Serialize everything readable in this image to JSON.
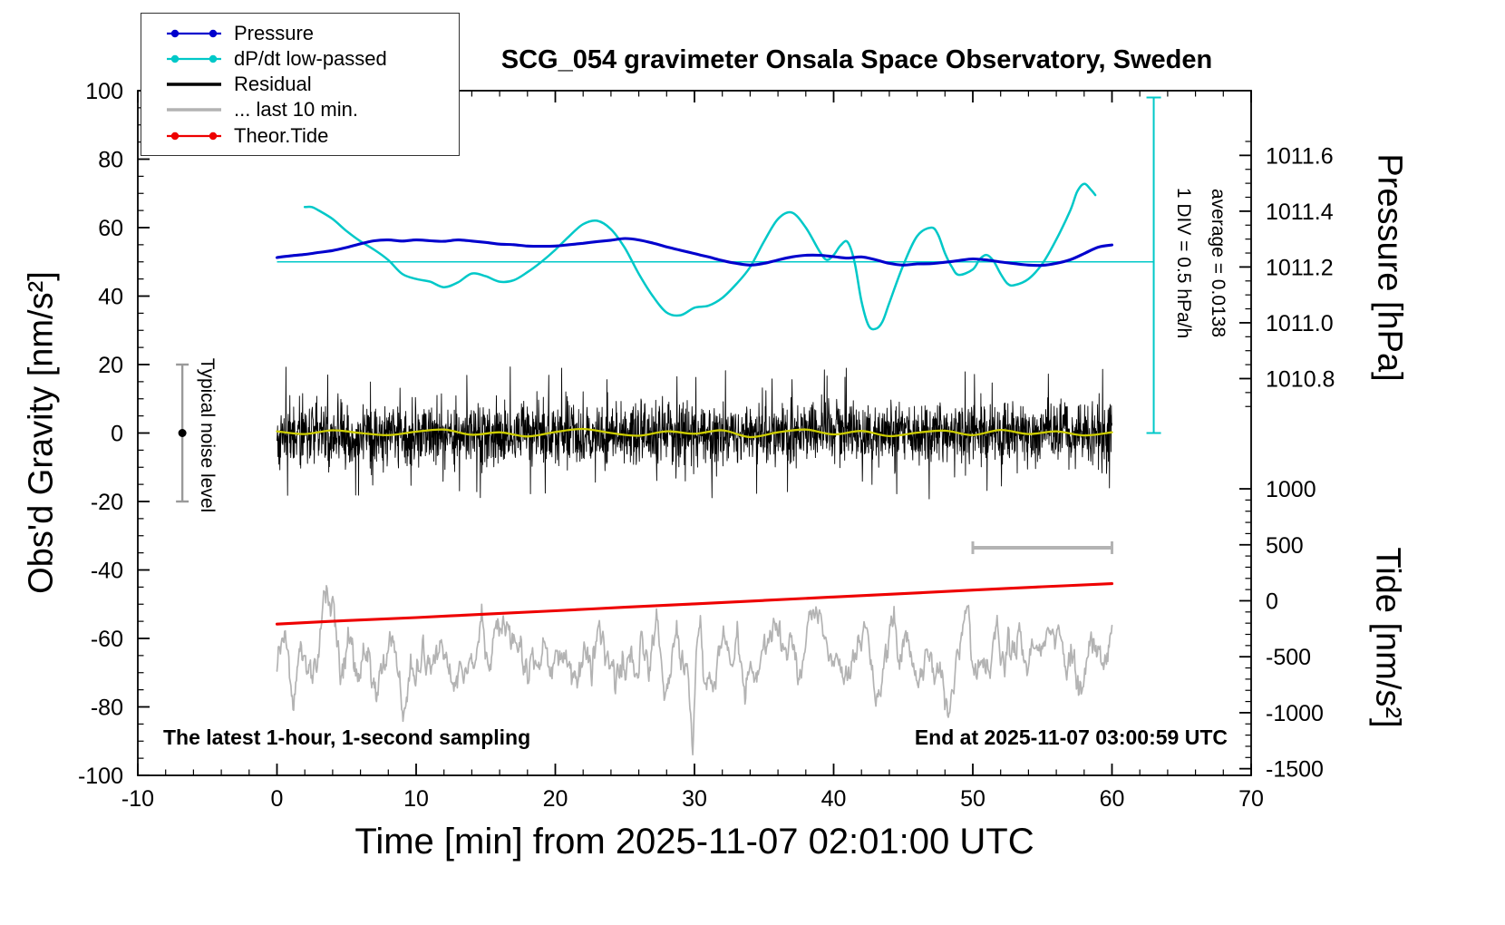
{
  "app": {
    "background": "#ffffff"
  },
  "legend": {
    "items": [
      {
        "label": "Pressure",
        "color": "#0000cd",
        "marker": "dot-line"
      },
      {
        "label": "dP/dt low-passed",
        "color": "#00c8c8",
        "marker": "dot-line"
      },
      {
        "label": "Residual",
        "color": "#000000",
        "marker": "line"
      },
      {
        "label": "... last 10 min.",
        "color": "#b3b3b3",
        "marker": "line"
      },
      {
        "label": "Theor.Tide",
        "color": "#ee0000",
        "marker": "dot-line"
      }
    ]
  },
  "chart_data": {
    "type": "line",
    "title": "SCG_054 gravimeter Onsala Space Observatory, Sweden",
    "xlabel": "Time [min] from 2025-11-07 02:01:00 UTC",
    "ylabel_left": "Obs'd Gravity [nm/s²]",
    "ylabel_right_top": "Pressure [hPa]",
    "ylabel_right_bottom": "Tide [nm/s²]",
    "xlim": [
      -10,
      70
    ],
    "ylim": [
      -100,
      100
    ],
    "x_ticks": [
      -10,
      0,
      10,
      20,
      30,
      40,
      50,
      60,
      70
    ],
    "x_minor_step": 2,
    "y_ticks_left": [
      -100,
      -80,
      -60,
      -40,
      -20,
      0,
      20,
      40,
      60,
      80,
      100
    ],
    "y_minor_step": 5,
    "grid": false,
    "legend_position": "top-left",
    "pressure_axis": {
      "ticks": [
        1011.6,
        1011.4,
        1011.2,
        1011.0,
        1010.8
      ],
      "minor_step": 0.05,
      "minor_range": [
        1010.7,
        1011.65
      ]
    },
    "tide_axis": {
      "ticks": [
        1000,
        500,
        0,
        -500,
        -1000,
        -1500
      ],
      "minor_step": 100,
      "minor_range": [
        -1500,
        1000
      ]
    },
    "axis_maps": {
      "pressure": {
        "ref_value": 1011.2,
        "ref_g": 48.5,
        "g_per_unit": 81.5
      },
      "dpdt": {
        "ref_value": 0,
        "ref_g": 50,
        "g_per_unit": 40
      },
      "tide": {
        "ref_value": 0,
        "ref_g": -49,
        "g_per_unit": 0.0327
      }
    },
    "annotations": {
      "div_scale": "1 DIV = 0.5 hPa/h",
      "average": "average = 0.0138",
      "noise_label": "Typical noise level",
      "sampling_note": "The latest 1-hour, 1-second sampling",
      "end_time": "End at 2025-11-07 03:00:59 UTC"
    },
    "reference_lines": {
      "dpdt_zero_line": {
        "g": 50,
        "x0": 0,
        "x1": 63,
        "color": "#00c8c8"
      },
      "dpdt_scale_bar": {
        "x": 63,
        "g0": 0,
        "g1": 98,
        "color": "#00c8c8"
      }
    },
    "noise_errorbar": {
      "x": -6.8,
      "g_min": -20,
      "g_max": 20,
      "dot_g": 0,
      "color": "#9a9a9a",
      "dot_color": "#000000"
    },
    "gray_scalebar": {
      "x0": 50,
      "x1": 60,
      "g": -33.5,
      "color": "#b3b3b3"
    },
    "series": [
      {
        "id": "pressure",
        "name": "Pressure",
        "axis": "pressure",
        "units": "hPa",
        "color": "#0000cd",
        "width": 3.1,
        "z": 2,
        "smooth": true,
        "x0": 0,
        "dx": 1,
        "values": [
          1011.234,
          1011.24,
          1011.245,
          1011.252,
          1011.259,
          1011.27,
          1011.283,
          1011.294,
          1011.297,
          1011.293,
          1011.297,
          1011.294,
          1011.292,
          1011.297,
          1011.293,
          1011.288,
          1011.282,
          1011.28,
          1011.275,
          1011.274,
          1011.275,
          1011.28,
          1011.285,
          1011.291,
          1011.296,
          1011.302,
          1011.297,
          1011.286,
          1011.272,
          1011.26,
          1011.248,
          1011.236,
          1011.223,
          1011.213,
          1011.207,
          1011.213,
          1011.225,
          1011.236,
          1011.242,
          1011.242,
          1011.237,
          1011.232,
          1011.236,
          1011.226,
          1011.213,
          1011.207,
          1011.211,
          1011.212,
          1011.217,
          1011.223,
          1011.229,
          1011.225,
          1011.218,
          1011.212,
          1011.207,
          1011.206,
          1011.213,
          1011.226,
          1011.248,
          1011.271,
          1011.279
        ]
      },
      {
        "id": "dpdt-low-passed",
        "name": "dP/dt low-passed",
        "axis": "dpdt",
        "units": "hPa/h",
        "color": "#00c8c8",
        "width": 2.5,
        "z": 1,
        "smooth": true,
        "points": [
          [
            2,
            0.4
          ],
          [
            2.5,
            0.4
          ],
          [
            3,
            0.375
          ],
          [
            4,
            0.313
          ],
          [
            5,
            0.225
          ],
          [
            6,
            0.15
          ],
          [
            7,
            0.088
          ],
          [
            8,
            0.013
          ],
          [
            9,
            -0.088
          ],
          [
            10,
            -0.125
          ],
          [
            11,
            -0.145
          ],
          [
            12,
            -0.185
          ],
          [
            13,
            -0.15
          ],
          [
            14,
            -0.085
          ],
          [
            15,
            -0.105
          ],
          [
            16,
            -0.145
          ],
          [
            17,
            -0.135
          ],
          [
            18,
            -0.075
          ],
          [
            19,
            0
          ],
          [
            20,
            0.088
          ],
          [
            21,
            0.188
          ],
          [
            22,
            0.275
          ],
          [
            23,
            0.3
          ],
          [
            24,
            0.238
          ],
          [
            25,
            0.1
          ],
          [
            26,
            -0.088
          ],
          [
            27,
            -0.25
          ],
          [
            28,
            -0.37
          ],
          [
            29,
            -0.39
          ],
          [
            30,
            -0.335
          ],
          [
            31,
            -0.32
          ],
          [
            32,
            -0.263
          ],
          [
            33,
            -0.163
          ],
          [
            34,
            -0.038
          ],
          [
            35,
            0.15
          ],
          [
            36,
            0.313
          ],
          [
            37,
            0.36
          ],
          [
            38,
            0.25
          ],
          [
            39,
            0.075
          ],
          [
            39.5,
            0.015
          ],
          [
            40,
            0.05
          ],
          [
            40.5,
            0.12
          ],
          [
            41,
            0.145
          ],
          [
            41.5,
            0
          ],
          [
            42,
            -0.288
          ],
          [
            42.5,
            -0.463
          ],
          [
            43,
            -0.49
          ],
          [
            43.5,
            -0.438
          ],
          [
            44,
            -0.3
          ],
          [
            45,
            -0.025
          ],
          [
            46,
            0.188
          ],
          [
            47,
            0.25
          ],
          [
            47.5,
            0.2
          ],
          [
            48,
            0.063
          ],
          [
            48.5,
            -0.038
          ],
          [
            49,
            -0.095
          ],
          [
            50,
            -0.055
          ],
          [
            50.5,
            0.02
          ],
          [
            51,
            0.05
          ],
          [
            51.5,
            0.005
          ],
          [
            52,
            -0.088
          ],
          [
            52.5,
            -0.16
          ],
          [
            53,
            -0.17
          ],
          [
            54,
            -0.125
          ],
          [
            55,
            -0.013
          ],
          [
            56,
            0.163
          ],
          [
            57,
            0.375
          ],
          [
            57.5,
            0.513
          ],
          [
            58,
            0.57
          ],
          [
            58.5,
            0.525
          ],
          [
            58.8,
            0.488
          ]
        ]
      },
      {
        "id": "residual",
        "name": "Residual",
        "axis": "gravity",
        "units": "nm/s²",
        "color": "#000000",
        "width": 0.9,
        "z": 5,
        "noise": {
          "seed": 1337,
          "n": 2600,
          "x0": 0,
          "x1": 60,
          "mean": 0,
          "sigma": 4.3,
          "spike_prob": 0.03,
          "spike_scale": 1.9
        }
      },
      {
        "id": "residual-smooth",
        "name": "Residual low-passed",
        "axis": "gravity",
        "units": "nm/s²",
        "color": "#cdcd00",
        "width": 2.3,
        "z": 6,
        "smooth": true,
        "x0": 0,
        "dx": 2,
        "values": [
          0.5,
          -0.3,
          0.8,
          0.0,
          -0.6,
          0.4,
          1.0,
          -0.5,
          0.2,
          -1.0,
          0.3,
          1.2,
          0.0,
          -0.8,
          0.5,
          -0.2,
          0.8,
          -1.2,
          0.2,
          1.0,
          -0.4,
          0.6,
          -0.9,
          0.1,
          0.7,
          -0.6,
          0.9,
          -0.3,
          0.5,
          -0.7,
          0.2
        ]
      },
      {
        "id": "last-10-min",
        "name": "... last 10 min.",
        "axis": "gravity",
        "units": "nm/s²",
        "color": "#b3b3b3",
        "width": 1.7,
        "z": 3,
        "noise": {
          "seed": 777,
          "n": 1200,
          "x0": 0,
          "x1": 60,
          "mean": -65,
          "sigma": 5.5,
          "smooth": 5
        },
        "events": [
          {
            "x": 29.9,
            "dy": -15
          },
          {
            "x": 30.5,
            "dy": 10
          }
        ]
      },
      {
        "id": "theor-tide",
        "name": "Theor.Tide",
        "axis": "tide",
        "units": "nm/s²",
        "color": "#ee0000",
        "width": 3.1,
        "z": 4,
        "smooth": true,
        "x0": 0,
        "dx": 5,
        "values": [
          -208,
          -177,
          -150,
          -119,
          -89,
          -58,
          -28,
          3,
          34,
          64,
          95,
          125,
          153
        ]
      }
    ]
  }
}
